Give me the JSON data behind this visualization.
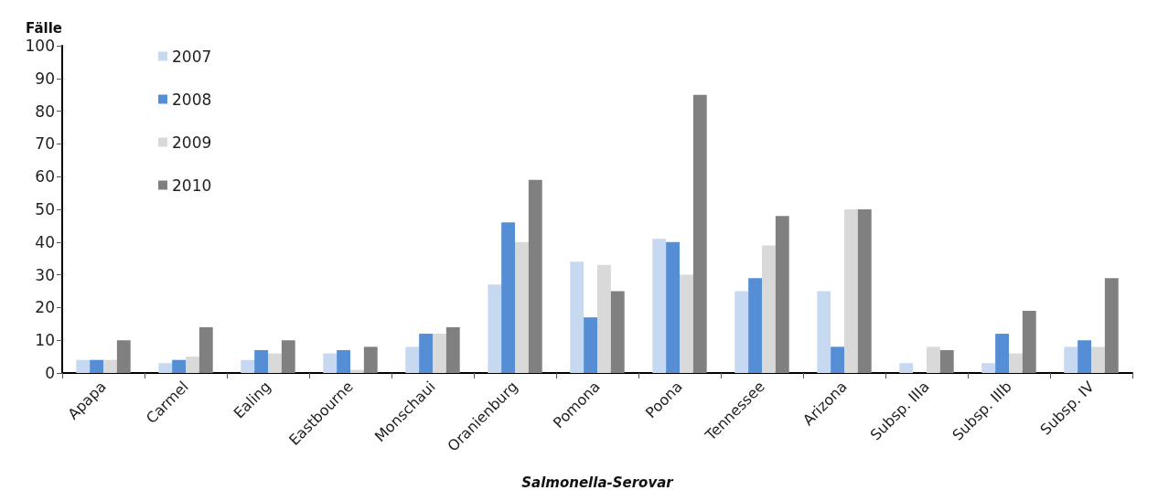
{
  "chart_data": {
    "type": "bar",
    "xlabel": "Salmonella-Serovar",
    "ylabel": "Fälle",
    "categories": [
      "Apapa",
      "Carmel",
      "Ealing",
      "Eastbourne",
      "Monschaui",
      "Oranienburg",
      "Pomona",
      "Poona",
      "Tennessee",
      "Arizona",
      "Subsp. IIIa",
      "Subsp. IIIb",
      "Subsp. IV"
    ],
    "series": [
      {
        "name": "2007",
        "color": "#c6d9f1",
        "values": [
          4,
          3,
          4,
          6,
          8,
          27,
          34,
          41,
          25,
          25,
          3,
          3,
          8
        ]
      },
      {
        "name": "2008",
        "color": "#558ed5",
        "values": [
          4,
          4,
          7,
          7,
          12,
          46,
          17,
          40,
          29,
          8,
          0,
          12,
          10
        ]
      },
      {
        "name": "2009",
        "color": "#d9d9d9",
        "values": [
          4,
          5,
          6,
          1,
          12,
          40,
          33,
          30,
          39,
          50,
          8,
          6,
          8
        ]
      },
      {
        "name": "2010",
        "color": "#808080",
        "values": [
          10,
          14,
          10,
          8,
          14,
          59,
          25,
          85,
          48,
          50,
          7,
          19,
          29
        ]
      }
    ],
    "ylim": [
      0,
      100
    ],
    "yticks": [
      0,
      10,
      20,
      30,
      40,
      50,
      60,
      70,
      80,
      90,
      100
    ],
    "grid": false,
    "legend": "top left"
  }
}
